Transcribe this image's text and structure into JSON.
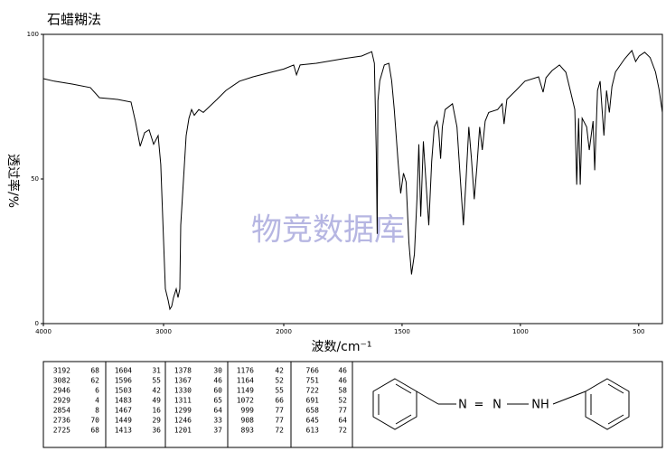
{
  "chart_data": {
    "type": "line",
    "title": "石蜡糊法",
    "xlabel": "波数/cm⁻¹",
    "ylabel": "透过率/%",
    "watermark": "物竞数据库",
    "xlim": [
      4000,
      400
    ],
    "xticks": [
      4000,
      3000,
      2000,
      1500,
      1000,
      500
    ],
    "x_scale_break": 2000,
    "ylim": [
      0,
      100
    ],
    "yticks": [
      0,
      50,
      100
    ],
    "series": [
      {
        "color": "#000000",
        "x": [
          4000,
          3910,
          3760,
          3609,
          3534,
          3383,
          3271,
          3233,
          3195,
          3158,
          3120,
          3083,
          3045,
          3023,
          3008,
          2985,
          2962,
          2947,
          2932,
          2917,
          2895,
          2880,
          2865,
          2857,
          2835,
          2812,
          2789,
          2767,
          2744,
          2707,
          2669,
          2556,
          2481,
          2368,
          2256,
          2105,
          2000,
          1958,
          1946,
          1931,
          1862,
          1747,
          1671,
          1628,
          1617,
          1609,
          1605,
          1602,
          1594,
          1575,
          1556,
          1544,
          1533,
          1517,
          1506,
          1494,
          1483,
          1471,
          1460,
          1448,
          1437,
          1429,
          1421,
          1410,
          1398,
          1387,
          1375,
          1364,
          1352,
          1345,
          1337,
          1330,
          1318,
          1287,
          1268,
          1253,
          1241,
          1230,
          1218,
          1207,
          1195,
          1184,
          1172,
          1161,
          1149,
          1134,
          1096,
          1077,
          1069,
          1057,
          1019,
          981,
          923,
          904,
          892,
          866,
          835,
          808,
          789,
          770,
          762,
          754,
          747,
          739,
          720,
          709,
          693,
          686,
          674,
          663,
          647,
          636,
          624,
          613,
          598,
          559,
          529,
          513,
          498,
          475,
          452,
          429,
          414,
          400
        ],
        "values": [
          84.7,
          83.8,
          82.8,
          81.6,
          78.1,
          77.5,
          76.6,
          69.7,
          61.3,
          66,
          67,
          62,
          65,
          55,
          38,
          12,
          8,
          5,
          6,
          9,
          12,
          9,
          12,
          34,
          49,
          65,
          71,
          74,
          72,
          74,
          73,
          77.5,
          80.6,
          83.8,
          85.3,
          86.9,
          88,
          89.4,
          86,
          89.4,
          90,
          91.6,
          92.5,
          94,
          90,
          58.8,
          31,
          77,
          84,
          89.4,
          90,
          84,
          74,
          56,
          45,
          52,
          49,
          28,
          17,
          24,
          43,
          62,
          37,
          63,
          48,
          34,
          56,
          68,
          70,
          66.5,
          57,
          68,
          74,
          76,
          68,
          49,
          34,
          49,
          68,
          57,
          43,
          54,
          68,
          60,
          70,
          73,
          74,
          76,
          69,
          77.5,
          80.6,
          83.8,
          85.3,
          80,
          85,
          87.5,
          89.4,
          86.9,
          80.6,
          74,
          48,
          71,
          48,
          71,
          68,
          60,
          70,
          53,
          80.6,
          83.8,
          65,
          80.6,
          73,
          82,
          87,
          91.6,
          94.4,
          90.6,
          92.5,
          93.8,
          92,
          87,
          81,
          73
        ]
      }
    ]
  },
  "table": {
    "columns": [
      [
        [
          3192,
          68
        ],
        [
          3082,
          62
        ],
        [
          2946,
          6
        ],
        [
          2929,
          4
        ],
        [
          2854,
          8
        ],
        [
          2736,
          70
        ],
        [
          2725,
          68
        ]
      ],
      [
        [
          1604,
          31
        ],
        [
          1596,
          55
        ],
        [
          1503,
          42
        ],
        [
          1483,
          49
        ],
        [
          1467,
          16
        ],
        [
          1449,
          29
        ],
        [
          1413,
          36
        ]
      ],
      [
        [
          1378,
          30
        ],
        [
          1367,
          46
        ],
        [
          1330,
          60
        ],
        [
          1311,
          65
        ],
        [
          1299,
          64
        ],
        [
          1246,
          33
        ],
        [
          1201,
          37
        ]
      ],
      [
        [
          1176,
          42
        ],
        [
          1164,
          52
        ],
        [
          1149,
          55
        ],
        [
          1072,
          66
        ],
        [
          999,
          77
        ],
        [
          908,
          77
        ],
        [
          893,
          72
        ]
      ],
      [
        [
          766,
          46
        ],
        [
          751,
          46
        ],
        [
          722,
          58
        ],
        [
          691,
          52
        ],
        [
          658,
          77
        ],
        [
          645,
          64
        ],
        [
          613,
          72
        ]
      ]
    ]
  },
  "structure": {
    "labels": [
      "N",
      "=",
      "N",
      "NH"
    ]
  }
}
